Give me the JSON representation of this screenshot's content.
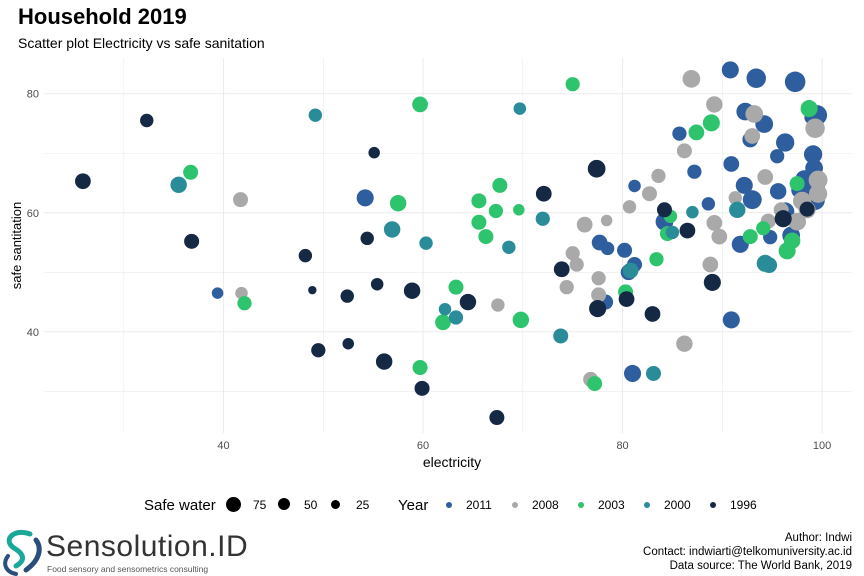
{
  "title": "Household 2019",
  "subtitle": "Scatter plot Electricity vs safe sanitation",
  "brand": {
    "name": "Sensolution.ID",
    "tagline": "Food sensory and sensometrics consulting"
  },
  "credits": {
    "author": "Author: Indwi",
    "contact": "Contact: indwiarti@telkomuniversity.ac.id",
    "source": "Data source: The World Bank, 2019"
  },
  "colors": {
    "2011": "#2e5e9e",
    "2008": "#a9a9a9",
    "2003": "#2ec46e",
    "2000": "#2b8c99",
    "1996": "#152844",
    "grid": "#ebebeb",
    "axis_text": "#4d4d4d"
  },
  "chart_data": {
    "type": "scatter",
    "title": "Household 2019",
    "subtitle": "Scatter plot Electricity vs safe sanitation",
    "xlabel": "electricity",
    "ylabel": "safe santitation",
    "xlim": [
      22,
      103
    ],
    "ylim": [
      23,
      86
    ],
    "x_ticks": [
      40,
      60,
      80,
      100
    ],
    "y_ticks": [
      40,
      60,
      80
    ],
    "grid": true,
    "legend_position": "bottom",
    "size_legend": {
      "title": "Safe water",
      "values": [
        75,
        50,
        25
      ]
    },
    "color_legend": {
      "title": "Year",
      "values": [
        "2011",
        "2008",
        "2003",
        "2000",
        "1996"
      ]
    },
    "series": [
      {
        "name": "2011",
        "points": [
          [
            39.4,
            46.5,
            20
          ],
          [
            54.2,
            62.5,
            55
          ],
          [
            77.7,
            55.0,
            45
          ],
          [
            78.3,
            45.0,
            40
          ],
          [
            78.5,
            54.0,
            30
          ],
          [
            80.2,
            53.7,
            40
          ],
          [
            80.6,
            50.0,
            45
          ],
          [
            81.0,
            33.0,
            55
          ],
          [
            81.2,
            51.3,
            40
          ],
          [
            81.2,
            64.5,
            25
          ],
          [
            84.2,
            58.5,
            60
          ],
          [
            85.7,
            73.3,
            35
          ],
          [
            87.2,
            66.9,
            35
          ],
          [
            88.6,
            61.5,
            30
          ],
          [
            90.9,
            68.2,
            45
          ],
          [
            90.8,
            84.0,
            55
          ],
          [
            90.9,
            42.0,
            55
          ],
          [
            91.8,
            54.7,
            55
          ],
          [
            92.2,
            64.6,
            55
          ],
          [
            92.3,
            77.0,
            60
          ],
          [
            92.8,
            72.3,
            45
          ],
          [
            93.0,
            62.2,
            70
          ],
          [
            93.4,
            82.6,
            75
          ],
          [
            94.2,
            74.9,
            60
          ],
          [
            94.8,
            55.9,
            35
          ],
          [
            95.5,
            69.5,
            35
          ],
          [
            95.6,
            63.6,
            50
          ],
          [
            96.3,
            60.2,
            65
          ],
          [
            96.3,
            71.8,
            65
          ],
          [
            96.9,
            56.2,
            60
          ],
          [
            97.3,
            82.0,
            85
          ],
          [
            97.7,
            63.8,
            45
          ],
          [
            98.2,
            65.7,
            55
          ],
          [
            98.8,
            64.2,
            75
          ],
          [
            98.9,
            76.0,
            30
          ],
          [
            99.1,
            69.8,
            65
          ],
          [
            99.2,
            67.5,
            60
          ],
          [
            99.3,
            62.1,
            75
          ],
          [
            99.4,
            64.5,
            60
          ],
          [
            99.5,
            76.4,
            80
          ]
        ]
      },
      {
        "name": "2008",
        "points": [
          [
            41.7,
            62.2,
            40
          ],
          [
            41.8,
            46.5,
            25
          ],
          [
            67.5,
            44.5,
            30
          ],
          [
            74.4,
            47.5,
            35
          ],
          [
            75.0,
            53.2,
            35
          ],
          [
            75.4,
            51.3,
            35
          ],
          [
            76.2,
            58.0,
            45
          ],
          [
            76.8,
            32.0,
            40
          ],
          [
            77.6,
            49.0,
            35
          ],
          [
            77.6,
            46.2,
            40
          ],
          [
            78.4,
            58.7,
            20
          ],
          [
            80.7,
            61.0,
            30
          ],
          [
            82.7,
            63.2,
            40
          ],
          [
            83.6,
            66.2,
            35
          ],
          [
            86.2,
            70.4,
            40
          ],
          [
            86.2,
            38.0,
            50
          ],
          [
            86.9,
            82.5,
            60
          ],
          [
            88.8,
            51.3,
            45
          ],
          [
            89.2,
            58.3,
            45
          ],
          [
            89.2,
            78.2,
            50
          ],
          [
            89.7,
            56.0,
            45
          ],
          [
            91.3,
            62.5,
            30
          ],
          [
            93.0,
            72.9,
            45
          ],
          [
            93.2,
            76.6,
            60
          ],
          [
            94.3,
            66.0,
            45
          ],
          [
            94.6,
            58.6,
            40
          ],
          [
            95.9,
            60.5,
            40
          ],
          [
            97.5,
            58.5,
            60
          ],
          [
            98.0,
            62.0,
            65
          ],
          [
            98.5,
            60.5,
            55
          ],
          [
            99.3,
            74.2,
            75
          ],
          [
            99.6,
            65.5,
            70
          ],
          [
            99.6,
            63.2,
            65
          ]
        ]
      },
      {
        "name": "2003",
        "points": [
          [
            36.7,
            66.8,
            40
          ],
          [
            42.1,
            44.8,
            35
          ],
          [
            57.5,
            61.6,
            50
          ],
          [
            59.7,
            78.2,
            45
          ],
          [
            59.7,
            34.0,
            40
          ],
          [
            62.0,
            41.6,
            45
          ],
          [
            63.3,
            47.5,
            40
          ],
          [
            65.6,
            62.0,
            40
          ],
          [
            65.6,
            58.4,
            40
          ],
          [
            66.3,
            56.0,
            40
          ],
          [
            67.3,
            60.3,
            35
          ],
          [
            67.7,
            64.6,
            40
          ],
          [
            69.6,
            60.5,
            20
          ],
          [
            69.8,
            42.0,
            50
          ],
          [
            75.0,
            81.6,
            35
          ],
          [
            77.2,
            31.3,
            40
          ],
          [
            80.3,
            46.7,
            40
          ],
          [
            83.4,
            52.2,
            35
          ],
          [
            84.5,
            56.5,
            40
          ],
          [
            84.8,
            59.4,
            30
          ],
          [
            87.4,
            73.5,
            45
          ],
          [
            88.9,
            75.1,
            55
          ],
          [
            92.8,
            56.0,
            40
          ],
          [
            94.1,
            57.4,
            35
          ],
          [
            96.5,
            53.6,
            55
          ],
          [
            97.0,
            55.3,
            50
          ],
          [
            97.5,
            64.9,
            40
          ],
          [
            98.7,
            77.5,
            55
          ]
        ]
      },
      {
        "name": "2000",
        "points": [
          [
            35.5,
            64.7,
            50
          ],
          [
            49.2,
            76.4,
            30
          ],
          [
            56.9,
            57.2,
            50
          ],
          [
            60.3,
            54.9,
            30
          ],
          [
            62.2,
            43.8,
            25
          ],
          [
            63.3,
            42.4,
            35
          ],
          [
            68.6,
            54.2,
            30
          ],
          [
            69.7,
            77.5,
            25
          ],
          [
            72.0,
            59.0,
            35
          ],
          [
            73.8,
            39.3,
            40
          ],
          [
            80.8,
            50.3,
            45
          ],
          [
            83.1,
            33.0,
            40
          ],
          [
            85.0,
            56.7,
            30
          ],
          [
            87.0,
            60.1,
            25
          ],
          [
            91.5,
            60.5,
            50
          ],
          [
            94.3,
            51.5,
            55
          ],
          [
            94.7,
            51.2,
            45
          ]
        ]
      },
      {
        "name": "1996",
        "points": [
          [
            25.9,
            65.3,
            45
          ],
          [
            32.3,
            75.5,
            30
          ],
          [
            36.8,
            55.2,
            40
          ],
          [
            48.2,
            52.8,
            30
          ],
          [
            48.9,
            47.0,
            8
          ],
          [
            49.5,
            36.9,
            35
          ],
          [
            52.4,
            46.0,
            30
          ],
          [
            52.5,
            38.0,
            20
          ],
          [
            54.4,
            55.7,
            30
          ],
          [
            55.1,
            70.1,
            20
          ],
          [
            55.4,
            48.0,
            25
          ],
          [
            56.1,
            35.0,
            50
          ],
          [
            58.9,
            46.9,
            50
          ],
          [
            59.9,
            30.5,
            40
          ],
          [
            64.5,
            45.0,
            50
          ],
          [
            67.4,
            25.6,
            40
          ],
          [
            72.1,
            63.2,
            45
          ],
          [
            73.9,
            50.5,
            45
          ],
          [
            77.4,
            67.4,
            60
          ],
          [
            77.5,
            43.9,
            55
          ],
          [
            80.4,
            45.5,
            45
          ],
          [
            83.0,
            43.0,
            45
          ],
          [
            84.2,
            60.5,
            40
          ],
          [
            86.5,
            57.0,
            45
          ],
          [
            89.0,
            48.3,
            55
          ],
          [
            96.1,
            59.0,
            55
          ],
          [
            98.5,
            60.6,
            40
          ]
        ]
      }
    ]
  }
}
